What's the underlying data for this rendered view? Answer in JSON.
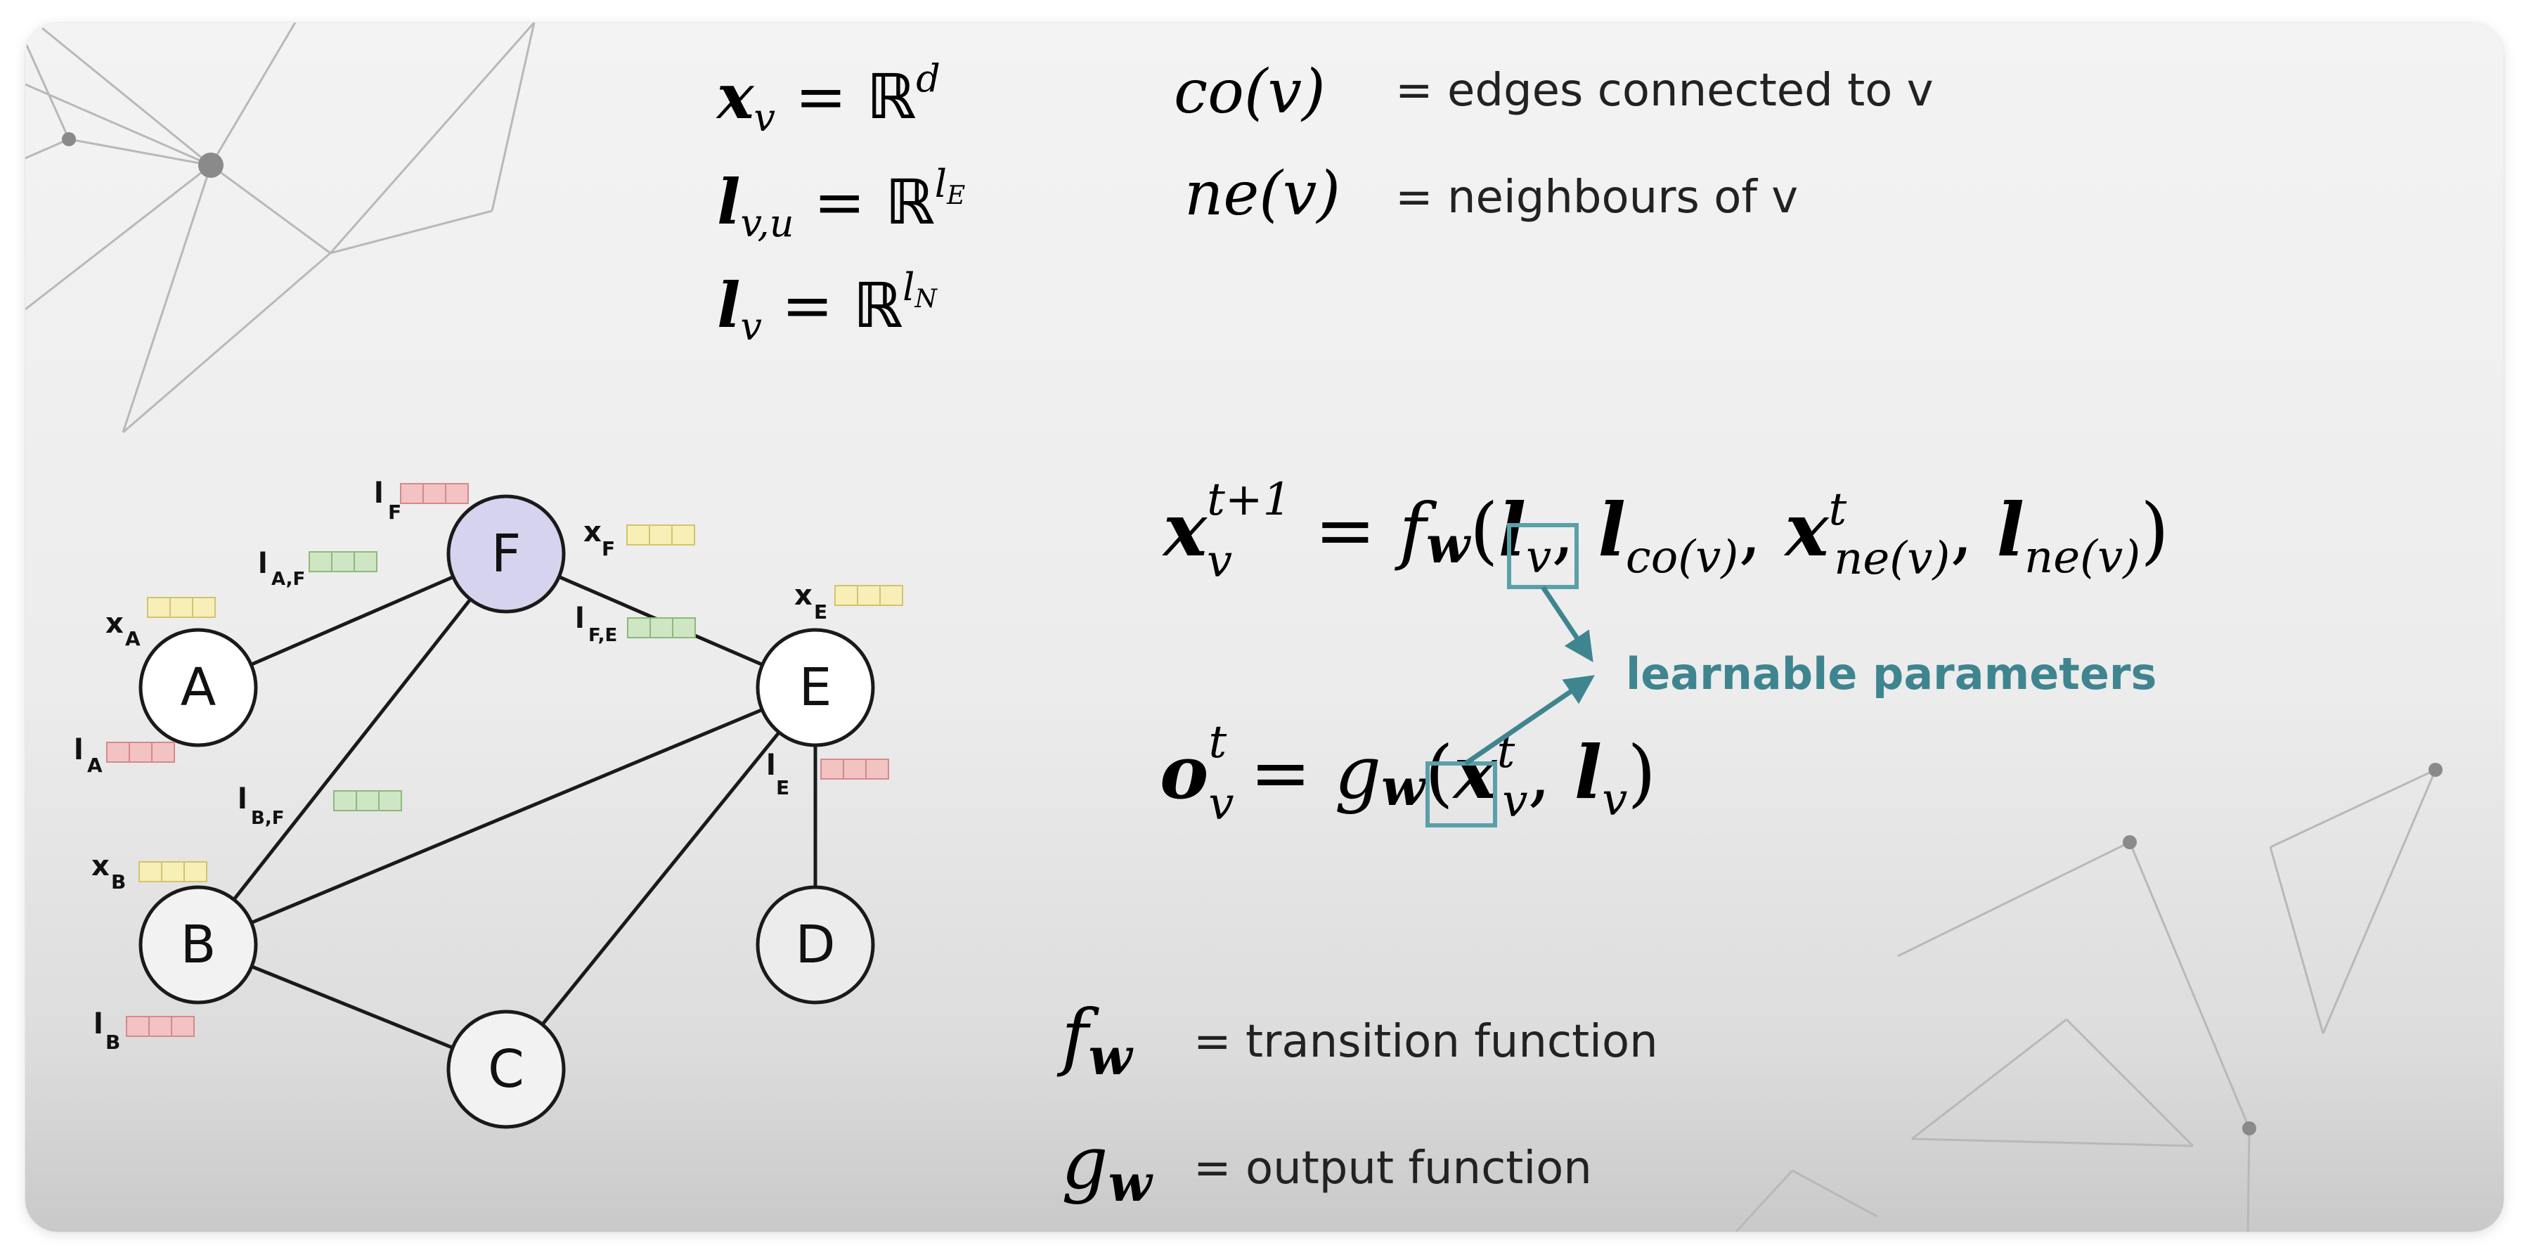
{
  "legend_top": {
    "co_desc": "= edges connected to v",
    "ne_desc": "= neighbours of v"
  },
  "graph": {
    "nodes": [
      {
        "id": "A",
        "label": "A",
        "highlighted": false
      },
      {
        "id": "B",
        "label": "B",
        "highlighted": false
      },
      {
        "id": "C",
        "label": "C",
        "highlighted": false
      },
      {
        "id": "D",
        "label": "D",
        "highlighted": false
      },
      {
        "id": "E",
        "label": "E",
        "highlighted": false
      },
      {
        "id": "F",
        "label": "F",
        "highlighted": true
      }
    ],
    "edges": [
      [
        "A",
        "F"
      ],
      [
        "B",
        "F"
      ],
      [
        "F",
        "E"
      ],
      [
        "B",
        "E"
      ],
      [
        "B",
        "C"
      ],
      [
        "C",
        "E"
      ],
      [
        "E",
        "D"
      ]
    ],
    "vector_labels": {
      "x_letter": "x",
      "l_letter": "l",
      "x_A": "A",
      "x_B": "B",
      "x_E": "E",
      "x_F": "F",
      "l_A": "A",
      "l_B": "B",
      "l_E": "E",
      "l_F": "F",
      "l_AF": "A,F",
      "l_BF": "B,F",
      "l_FE": "F,E"
    }
  },
  "annotation": {
    "learnable": "learnable parameters"
  },
  "legend_bottom": {
    "f_desc": "= transition function",
    "g_desc": "= output function"
  },
  "colors": {
    "node_highlight": "#d6d3ee",
    "feature_box_yellow": "#f7efb6",
    "feature_box_green": "#cfe6c4",
    "label_box_red": "#f3c2c2",
    "accent_teal": "#3f8590",
    "box_teal": "#5aa0a8"
  }
}
